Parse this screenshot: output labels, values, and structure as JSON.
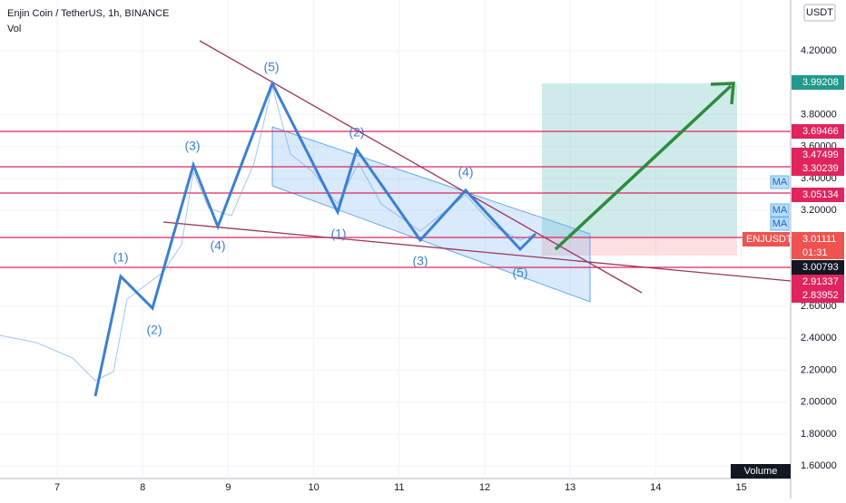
{
  "header": {
    "symbol": "Enjin Coin / TetherUS, 1h, BINANCE",
    "volume": "Vol",
    "currency": "USDT"
  },
  "price_axis": [
    "4.20000",
    "3.80000",
    "3.60000",
    "3.40000",
    "3.20000",
    "2.60000",
    "2.40000",
    "2.20000",
    "2.00000",
    "1.80000",
    "1.60000"
  ],
  "time_axis": [
    "7",
    "8",
    "9",
    "10",
    "11",
    "12",
    "13",
    "14",
    "15"
  ],
  "price_tags": [
    {
      "text": "3.99208",
      "kind": "target"
    },
    {
      "text": "3.69466",
      "kind": "level"
    },
    {
      "text": "3.47499",
      "kind": "level"
    },
    {
      "text": "3.30239",
      "kind": "level"
    },
    {
      "text": "3.05134",
      "kind": "level"
    },
    {
      "text": "3.01111",
      "kind": "last",
      "symbol": "ENJUSDT",
      "countdown": "01:31"
    },
    {
      "text": "3.00793",
      "kind": "ma"
    },
    {
      "text": "2.91337",
      "kind": "level"
    },
    {
      "text": "2.83952",
      "kind": "level"
    }
  ],
  "ma_labels": [
    "MA",
    "MA",
    "MA"
  ],
  "volume_label": "Volume",
  "wave_labels": [
    "(5)",
    "(3)",
    "(2)",
    "(4)",
    "(1)",
    "(2)",
    "(4)",
    "(1)",
    "(3)",
    "(5)"
  ]
}
